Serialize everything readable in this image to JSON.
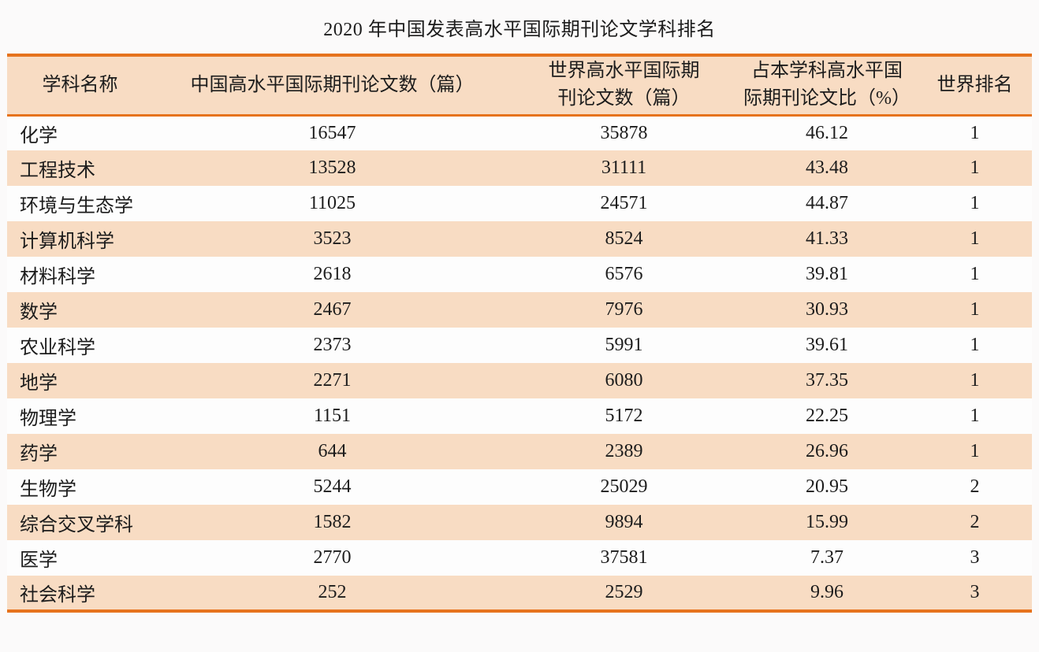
{
  "title": "2020 年中国发表高水平国际期刊论文学科排名",
  "table": {
    "headers": [
      "学科名称",
      "中国高水平国际期刊论文数（篇）",
      "世界高水平国际期\n刊论文数（篇）",
      "占本学科高水平国\n际期刊论文比（%）",
      "世界排名"
    ],
    "rows": [
      [
        "化学",
        "16547",
        "35878",
        "46.12",
        "1"
      ],
      [
        "工程技术",
        "13528",
        "31111",
        "43.48",
        "1"
      ],
      [
        "环境与生态学",
        "11025",
        "24571",
        "44.87",
        "1"
      ],
      [
        "计算机科学",
        "3523",
        "8524",
        "41.33",
        "1"
      ],
      [
        "材料科学",
        "2618",
        "6576",
        "39.81",
        "1"
      ],
      [
        "数学",
        "2467",
        "7976",
        "30.93",
        "1"
      ],
      [
        "农业科学",
        "2373",
        "5991",
        "39.61",
        "1"
      ],
      [
        "地学",
        "2271",
        "6080",
        "37.35",
        "1"
      ],
      [
        "物理学",
        "1151",
        "5172",
        "22.25",
        "1"
      ],
      [
        "药学",
        "644",
        "2389",
        "26.96",
        "1"
      ],
      [
        "生物学",
        "5244",
        "25029",
        "20.95",
        "2"
      ],
      [
        "综合交叉学科",
        "1582",
        "9894",
        "15.99",
        "2"
      ],
      [
        "医学",
        "2770",
        "37581",
        "7.37",
        "3"
      ],
      [
        "社会科学",
        "252",
        "2529",
        "9.96",
        "3"
      ]
    ]
  },
  "chart_data": {
    "type": "table",
    "title": "2020 年中国发表高水平国际期刊论文学科排名",
    "columns": [
      "学科名称",
      "中国高水平国际期刊论文数（篇）",
      "世界高水平国际期刊论文数（篇）",
      "占本学科高水平国际期刊论文比（%）",
      "世界排名"
    ],
    "rows": [
      [
        "化学",
        16547,
        35878,
        46.12,
        1
      ],
      [
        "工程技术",
        13528,
        31111,
        43.48,
        1
      ],
      [
        "环境与生态学",
        11025,
        24571,
        44.87,
        1
      ],
      [
        "计算机科学",
        3523,
        8524,
        41.33,
        1
      ],
      [
        "材料科学",
        2618,
        6576,
        39.81,
        1
      ],
      [
        "数学",
        2467,
        7976,
        30.93,
        1
      ],
      [
        "农业科学",
        2373,
        5991,
        39.61,
        1
      ],
      [
        "地学",
        2271,
        6080,
        37.35,
        1
      ],
      [
        "物理学",
        1151,
        5172,
        22.25,
        1
      ],
      [
        "药学",
        644,
        2389,
        26.96,
        1
      ],
      [
        "生物学",
        5244,
        25029,
        20.95,
        2
      ],
      [
        "综合交叉学科",
        1582,
        9894,
        15.99,
        2
      ],
      [
        "医学",
        2770,
        37581,
        7.37,
        3
      ],
      [
        "社会科学",
        252,
        2529,
        9.96,
        3
      ]
    ]
  },
  "colors": {
    "stripe_peach": "#f8dcc3",
    "rule_orange": "#e6731d",
    "text": "#1c1c1c",
    "background": "#fbfafa"
  }
}
